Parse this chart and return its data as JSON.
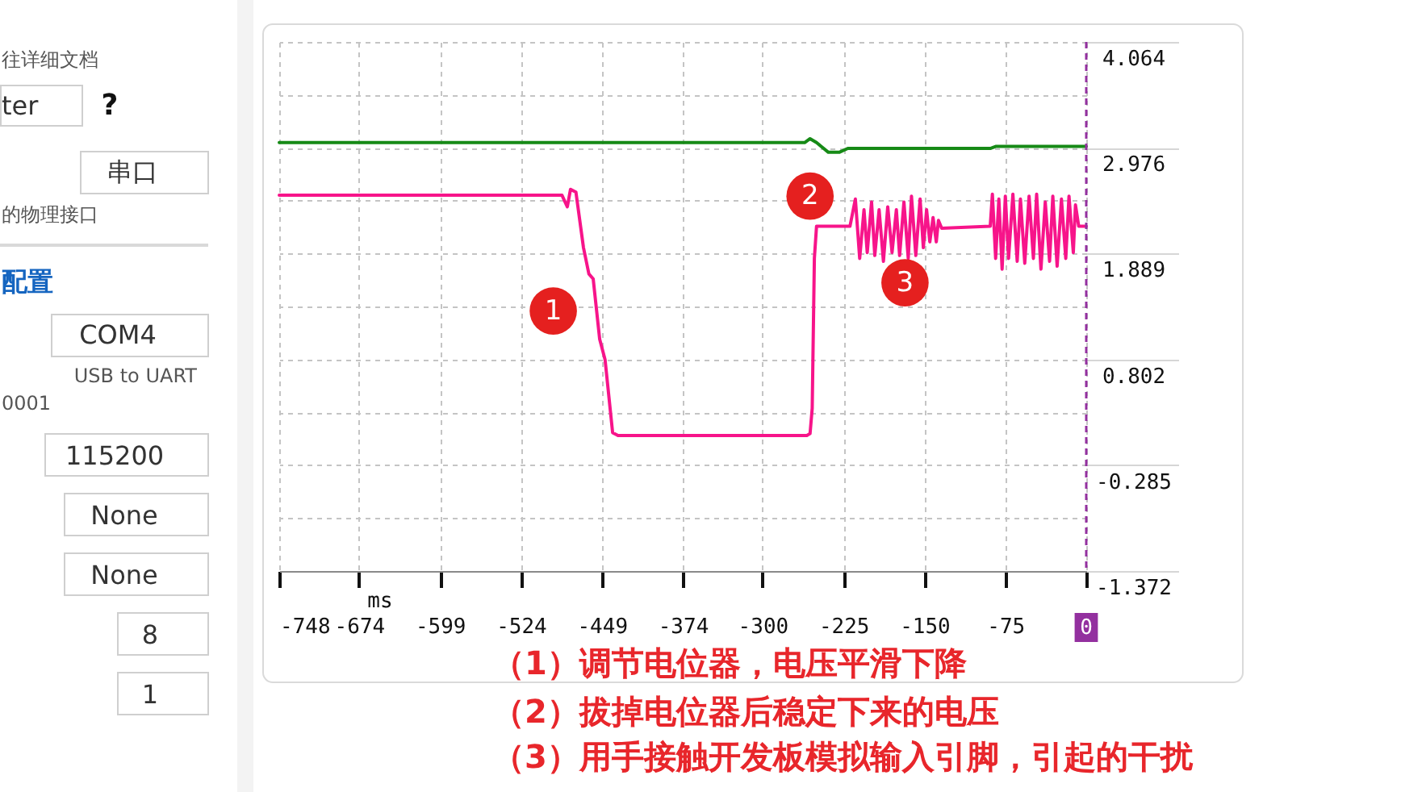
{
  "chart_data": [
    {
      "type": "other",
      "annotations": [
        "往详细文档",
        "ter",
        "?",
        "串口",
        "的物理接口",
        "配置",
        "COM4",
        "USB to UART",
        "0001",
        "115200",
        "None",
        "None",
        "8",
        "1"
      ]
    },
    {
      "type": "line",
      "xlabel": "ms",
      "series": [
        {
          "color": "#168a16",
          "x": [
            -748,
            -450,
            -261,
            -256,
            -250,
            -239,
            -229,
            -221,
            -89,
            -84,
            0
          ],
          "values": [
            3.03,
            3.03,
            3.03,
            3.07,
            3.03,
            2.93,
            2.93,
            2.97,
            2.97,
            2.99,
            2.99
          ]
        },
        {
          "color": "#f7148a",
          "x": [
            -748,
            -600,
            -486,
            -481,
            -478,
            -473,
            -466,
            -461,
            -457,
            -451,
            -446,
            -439,
            -434,
            -350,
            -259,
            -256,
            -254,
            -252,
            -250,
            -219,
            -214,
            -210,
            -206,
            -203,
            -199,
            -196,
            -192,
            -188,
            -184,
            -180,
            -176,
            -173,
            -169,
            -165,
            -162,
            -158,
            -154,
            -151,
            -148,
            -145,
            -142,
            -139,
            -137,
            -134,
            -89,
            -87,
            -84,
            -81,
            -78,
            -75,
            -72,
            -68,
            -64,
            -61,
            -57,
            -53,
            -49,
            -46,
            -42,
            -38,
            -34,
            -31,
            -27,
            -23,
            -19,
            -16,
            -12,
            -10,
            -7,
            0
          ],
          "values": [
            2.49,
            2.49,
            2.49,
            2.37,
            2.55,
            2.52,
            1.95,
            1.68,
            1.63,
            1.01,
            0.8,
            0.05,
            0.02,
            0.02,
            0.02,
            0.04,
            0.3,
            1.84,
            2.17,
            2.17,
            2.45,
            1.84,
            2.34,
            1.9,
            2.42,
            1.87,
            2.34,
            1.81,
            2.37,
            1.9,
            2.34,
            1.87,
            2.42,
            1.84,
            2.48,
            1.87,
            2.45,
            1.95,
            2.34,
            2.01,
            2.26,
            2.01,
            2.23,
            2.15,
            2.17,
            2.5,
            1.84,
            2.45,
            1.73,
            2.48,
            1.84,
            2.5,
            1.81,
            2.45,
            1.79,
            2.48,
            1.84,
            2.5,
            1.73,
            2.42,
            1.81,
            2.48,
            1.76,
            2.45,
            1.84,
            2.48,
            1.9,
            2.39,
            2.17,
            2.17
          ]
        }
      ],
      "xlim": [
        -748,
        0
      ],
      "xticks": [
        -748,
        -674,
        -599,
        -524,
        -449,
        -374,
        -300,
        -225,
        -150,
        -75,
        {
          "value": 0,
          "label": null
        }
      ],
      "ylim": [
        -1.372,
        4.064
      ],
      "yticks": [
        4.064,
        {
          "value": 3.52,
          "label": null
        },
        2.976,
        {
          "value": 2.433,
          "label": null
        },
        1.889,
        {
          "value": 1.346,
          "label": null
        },
        0.802,
        {
          "value": 0.259,
          "label": null
        },
        -0.285,
        {
          "value": -0.829,
          "label": null
        },
        -1.372
      ],
      "grid": true,
      "ref_lines": [
        {
          "axis": "x",
          "value": 0,
          "label": "0",
          "color": "#93309f",
          "line_style": "dashed"
        }
      ],
      "annotations": [
        {
          "text": "1",
          "x": -494,
          "y": 1.3
        },
        {
          "text": "2",
          "x": -256,
          "y": 2.48
        },
        {
          "text": "3",
          "x": -168,
          "y": 1.59
        },
        "（1）调节电位器，电压平滑下降",
        "（2）拔掉电位器后稳定下来的电压",
        "（3）用手接触开发板模拟输入引脚，引起的干扰"
      ]
    }
  ]
}
